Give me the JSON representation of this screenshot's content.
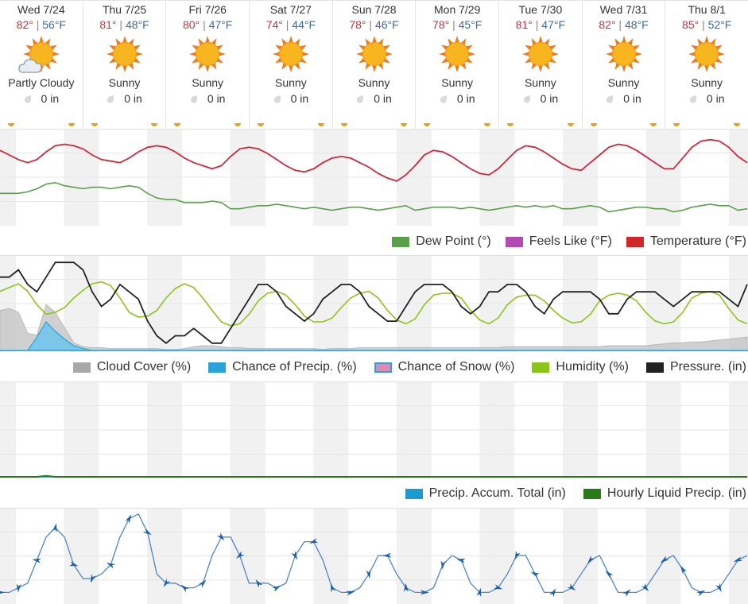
{
  "days": [
    {
      "date": "Wed 7/24",
      "hi": "82°",
      "lo": "56°F",
      "cond": "Partly Cloudy",
      "precip": "0 in",
      "icon": "partly-cloudy-sun-icon"
    },
    {
      "date": "Thu 7/25",
      "hi": "81°",
      "lo": "48°F",
      "cond": "Sunny",
      "precip": "0 in",
      "icon": "sun-icon"
    },
    {
      "date": "Fri 7/26",
      "hi": "80°",
      "lo": "47°F",
      "cond": "Sunny",
      "precip": "0 in",
      "icon": "sun-icon"
    },
    {
      "date": "Sat 7/27",
      "hi": "74°",
      "lo": "44°F",
      "cond": "Sunny",
      "precip": "0 in",
      "icon": "sun-icon"
    },
    {
      "date": "Sun 7/28",
      "hi": "78°",
      "lo": "46°F",
      "cond": "Sunny",
      "precip": "0 in",
      "icon": "sun-icon"
    },
    {
      "date": "Mon 7/29",
      "hi": "78°",
      "lo": "45°F",
      "cond": "Sunny",
      "precip": "0 in",
      "icon": "sun-icon"
    },
    {
      "date": "Tue 7/30",
      "hi": "81°",
      "lo": "47°F",
      "cond": "Sunny",
      "precip": "0 in",
      "icon": "sun-icon"
    },
    {
      "date": "Wed 7/31",
      "hi": "82°",
      "lo": "48°F",
      "cond": "Sunny",
      "precip": "0 in",
      "icon": "sun-icon"
    },
    {
      "date": "Thu 8/1",
      "hi": "85°",
      "lo": "52°F",
      "cond": "Sunny",
      "precip": "0 in",
      "icon": "sun-icon"
    }
  ],
  "colors": {
    "temperature": "#c8323c",
    "dew_point": "#5aa04a",
    "feels_like": "#b24bb0",
    "cloud_cover": "#a8a8a8",
    "chance_precip": "#2aa3d8",
    "chance_snow": "#d98cb8",
    "humidity": "#8cc51a",
    "pressure": "#222222",
    "precip_accum": "#1d9bd1",
    "hourly_liquid": "#2a7a1a",
    "wind": "#2f6fc0",
    "hi": "#c8323c",
    "lo": "#3a6aa8",
    "sun": "#f7b51f",
    "sun_ray": "#ef7b1e"
  },
  "legends": {
    "temp_panel": [
      "Dew Point (°)",
      "Feels Like (°F)",
      "Temperature (°F)"
    ],
    "humidity_panel": [
      "Cloud Cover (%)",
      "Chance of Precip. (%)",
      "Chance of Snow (%)",
      "Humidity (%)",
      "Pressure. (in)"
    ],
    "precip_panel": [
      "Precip. Accum. Total (in)",
      "Hourly Liquid Precip. (in)"
    ]
  },
  "chart_data": [
    {
      "type": "line",
      "series": [
        {
          "name": "Temperature (°F)",
          "values": [
            78,
            75,
            72,
            70,
            72,
            77,
            81,
            82,
            81,
            79,
            75,
            72,
            71,
            70,
            73,
            77,
            80,
            81,
            80,
            77,
            73,
            70,
            68,
            66,
            68,
            74,
            79,
            80,
            79,
            76,
            72,
            68,
            65,
            64,
            66,
            70,
            73,
            74,
            73,
            70,
            67,
            63,
            60,
            58,
            62,
            68,
            75,
            78,
            77,
            74,
            70,
            66,
            63,
            62,
            66,
            72,
            78,
            81,
            80,
            77,
            73,
            69,
            66,
            65,
            70,
            75,
            80,
            82,
            81,
            78,
            74,
            70,
            66,
            66,
            73,
            80,
            84,
            85,
            84,
            80,
            74,
            70
          ]
        },
        {
          "name": "Dew Point (°)",
          "values": [
            50,
            50,
            50,
            51,
            53,
            56,
            57,
            55,
            54,
            53,
            54,
            54,
            53,
            54,
            55,
            54,
            50,
            47,
            46,
            46,
            44,
            44,
            44,
            45,
            44,
            40,
            40,
            41,
            42,
            42,
            43,
            42,
            41,
            40,
            41,
            40,
            39,
            40,
            41,
            41,
            40,
            39,
            40,
            41,
            42,
            39,
            40,
            41,
            41,
            41,
            40,
            41,
            40,
            39,
            40,
            41,
            42,
            41,
            42,
            41,
            42,
            40,
            40,
            41,
            42,
            41,
            38,
            39,
            40,
            41,
            41,
            40,
            40,
            38,
            39,
            41,
            42,
            43,
            42,
            42,
            39,
            40
          ]
        }
      ]
    },
    {
      "type": "line",
      "series": [
        {
          "name": "Pressure. (in)",
          "values": [
            29.88,
            29.88,
            29.9,
            29.86,
            29.84,
            29.88,
            29.92,
            29.92,
            29.92,
            29.9,
            29.84,
            29.8,
            29.82,
            29.86,
            29.84,
            29.82,
            29.76,
            29.72,
            29.7,
            29.72,
            29.72,
            29.74,
            29.72,
            29.7,
            29.7,
            29.74,
            29.78,
            29.82,
            29.86,
            29.86,
            29.84,
            29.8,
            29.78,
            29.76,
            29.78,
            29.82,
            29.84,
            29.86,
            29.86,
            29.84,
            29.8,
            29.78,
            29.76,
            29.76,
            29.8,
            29.84,
            29.86,
            29.86,
            29.86,
            29.84,
            29.8,
            29.78,
            29.8,
            29.84,
            29.84,
            29.86,
            29.86,
            29.84,
            29.8,
            29.78,
            29.82,
            29.84,
            29.84,
            29.84,
            29.84,
            29.82,
            29.78,
            29.78,
            29.82,
            29.84,
            29.84,
            29.84,
            29.82,
            29.8,
            29.82,
            29.84,
            29.84,
            29.84,
            29.84,
            29.82,
            29.8,
            29.86
          ]
        },
        {
          "name": "Humidity (%)",
          "values": [
            62,
            66,
            70,
            62,
            48,
            38,
            40,
            45,
            55,
            63,
            70,
            72,
            68,
            55,
            40,
            35,
            36,
            42,
            55,
            65,
            70,
            66,
            55,
            42,
            30,
            26,
            28,
            38,
            52,
            60,
            62,
            58,
            48,
            36,
            30,
            30,
            34,
            45,
            55,
            60,
            62,
            55,
            42,
            32,
            28,
            33,
            48,
            58,
            60,
            60,
            55,
            42,
            32,
            28,
            34,
            48,
            56,
            58,
            58,
            52,
            42,
            34,
            29,
            30,
            38,
            52,
            58,
            60,
            58,
            52,
            40,
            31,
            28,
            30,
            40,
            55,
            60,
            62,
            58,
            44,
            32,
            28
          ]
        },
        {
          "name": "Cloud Cover (%)",
          "values": [
            42,
            44,
            40,
            18,
            16,
            48,
            40,
            24,
            8,
            4,
            3,
            3,
            2,
            2,
            2,
            2,
            2,
            2,
            1,
            1,
            2,
            4,
            5,
            5,
            4,
            3,
            3,
            2,
            2,
            2,
            2,
            2,
            2,
            2,
            2,
            1,
            2,
            2,
            2,
            3,
            3,
            3,
            3,
            3,
            3,
            3,
            3,
            3,
            3,
            3,
            3,
            3,
            3,
            3,
            3,
            4,
            4,
            4,
            4,
            4,
            4,
            4,
            4,
            4,
            4,
            4,
            5,
            5,
            5,
            5,
            5,
            6,
            7,
            8,
            8,
            9,
            9,
            10,
            11,
            12,
            13,
            14
          ]
        },
        {
          "name": "Chance of Precip. (%)",
          "values": [
            0,
            0,
            0,
            0,
            14,
            30,
            20,
            12,
            5,
            2,
            0,
            0,
            0,
            0,
            0,
            0,
            0,
            0,
            0,
            0,
            0,
            0,
            0,
            0,
            0,
            0,
            0,
            0,
            0,
            0,
            0,
            0,
            0,
            0,
            0,
            0,
            0,
            0,
            0,
            0,
            0,
            0,
            0,
            0,
            0,
            0,
            0,
            0,
            0,
            0,
            0,
            0,
            0,
            0,
            0,
            0,
            0,
            0,
            0,
            0,
            0,
            0,
            0,
            0,
            0,
            0,
            0,
            0,
            0,
            0,
            0,
            0,
            0,
            0,
            0,
            0,
            0,
            0,
            0,
            0,
            0,
            0
          ]
        },
        {
          "name": "Chance of Snow (%)",
          "values": [
            0,
            0,
            0,
            0,
            0,
            0,
            0,
            0,
            0,
            0,
            0,
            0,
            0,
            0,
            0,
            0,
            0,
            0,
            0,
            0,
            0,
            0,
            0,
            0,
            0,
            0,
            0,
            0,
            0,
            0,
            0,
            0,
            0,
            0,
            0,
            0,
            0,
            0,
            0,
            0,
            0,
            0,
            0,
            0,
            0,
            0,
            0,
            0,
            0,
            0,
            0,
            0,
            0,
            0,
            0,
            0,
            0,
            0,
            0,
            0,
            0,
            0,
            0,
            0,
            0,
            0,
            0,
            0,
            0,
            0,
            0,
            0,
            0,
            0,
            0,
            0,
            0,
            0,
            0,
            0,
            0,
            0
          ]
        }
      ]
    },
    {
      "type": "line",
      "series": [
        {
          "name": "Precip. Accum. Total (in)",
          "values": [
            0,
            0,
            0,
            0,
            0,
            0,
            0,
            0,
            0,
            0,
            0,
            0,
            0,
            0,
            0,
            0,
            0,
            0,
            0,
            0,
            0,
            0,
            0,
            0,
            0,
            0,
            0,
            0,
            0,
            0,
            0,
            0,
            0,
            0,
            0,
            0,
            0,
            0,
            0,
            0,
            0,
            0,
            0,
            0,
            0,
            0,
            0,
            0,
            0,
            0,
            0,
            0,
            0,
            0,
            0,
            0,
            0,
            0,
            0,
            0,
            0,
            0,
            0,
            0,
            0,
            0,
            0,
            0,
            0,
            0,
            0,
            0,
            0,
            0,
            0,
            0,
            0,
            0,
            0,
            0,
            0,
            0
          ]
        },
        {
          "name": "Hourly Liquid Precip. (in)",
          "values": [
            0,
            0,
            0,
            0,
            0,
            0.01,
            0,
            0,
            0,
            0,
            0,
            0,
            0,
            0,
            0,
            0,
            0,
            0,
            0,
            0,
            0,
            0,
            0,
            0,
            0,
            0,
            0,
            0,
            0,
            0,
            0,
            0,
            0,
            0,
            0,
            0,
            0,
            0,
            0,
            0,
            0,
            0,
            0,
            0,
            0,
            0,
            0,
            0,
            0,
            0,
            0,
            0,
            0,
            0,
            0,
            0,
            0,
            0,
            0,
            0,
            0,
            0,
            0,
            0,
            0,
            0,
            0,
            0,
            0,
            0,
            0,
            0,
            0,
            0,
            0,
            0,
            0,
            0,
            0,
            0,
            0,
            0
          ]
        }
      ]
    },
    {
      "type": "line",
      "series": [
        {
          "values": [
            2,
            2,
            3,
            4,
            9,
            14,
            16,
            14,
            8,
            5,
            5,
            6,
            8,
            14,
            18,
            19,
            15,
            6,
            4,
            4,
            3,
            3,
            4,
            10,
            14,
            14,
            10,
            4,
            4,
            4,
            3,
            4,
            10,
            13,
            13,
            9,
            3,
            2,
            2,
            3,
            6,
            10,
            10,
            6,
            3,
            2,
            2,
            3,
            8,
            10,
            9,
            4,
            2,
            2,
            3,
            6,
            10,
            10,
            6,
            2,
            2,
            2,
            3,
            6,
            9,
            10,
            6,
            2,
            2,
            2,
            3,
            6,
            9,
            10,
            7,
            3,
            2,
            2,
            3,
            6,
            9,
            10
          ]
        }
      ]
    }
  ]
}
